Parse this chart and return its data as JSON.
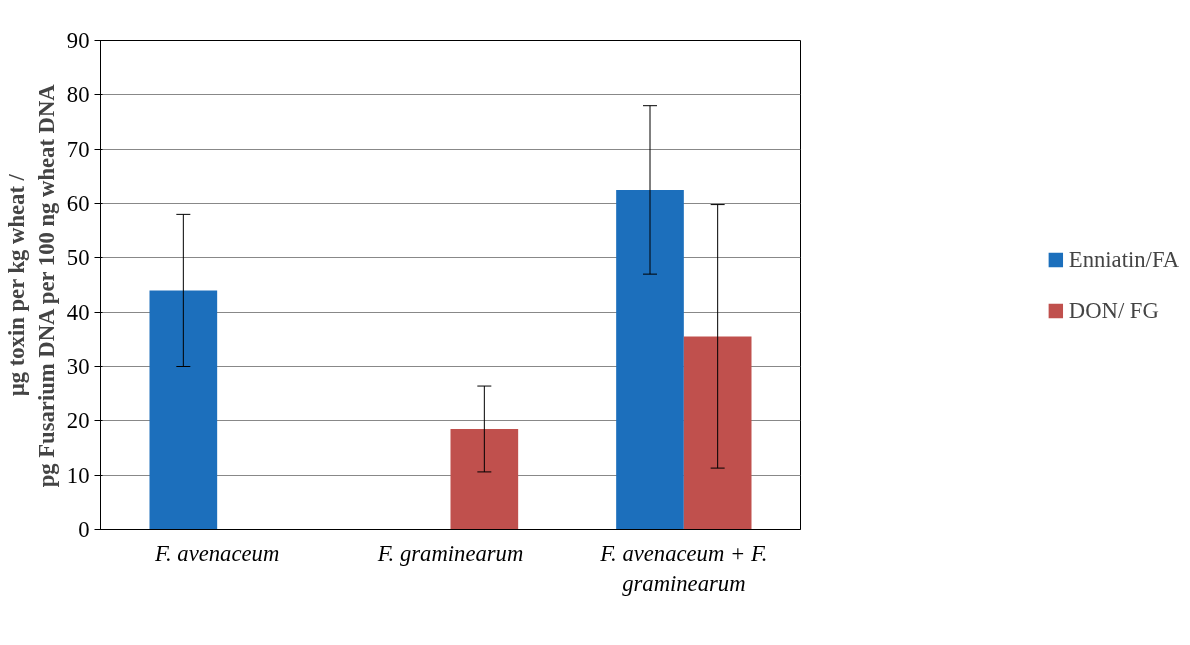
{
  "chart_data": {
    "type": "bar",
    "ylabel": "µg toxin per kg wheat /\npg Fusarium DNA per 100 ng wheat DNA",
    "categories": [
      "F. avenaceum",
      "F. graminearum",
      "F. avenaceum + F. graminearum"
    ],
    "series": [
      {
        "name": "Enniatin/FA",
        "color": "#1c6fbc",
        "values": [
          44,
          0,
          62.5
        ],
        "errors": [
          [
            30,
            58
          ],
          [
            0,
            0
          ],
          [
            47,
            78
          ]
        ]
      },
      {
        "name": "DON/ FG",
        "color": "#c0504d",
        "values": [
          0,
          18.5,
          35.5
        ],
        "errors": [
          [
            0,
            0
          ],
          [
            10.6,
            26.4
          ],
          [
            11.3,
            59.8
          ]
        ]
      }
    ],
    "ylim": [
      0,
      90
    ],
    "yticks": [
      0,
      10,
      20,
      30,
      40,
      50,
      60,
      70,
      80,
      90
    ],
    "grid": "y",
    "legend": "right"
  }
}
